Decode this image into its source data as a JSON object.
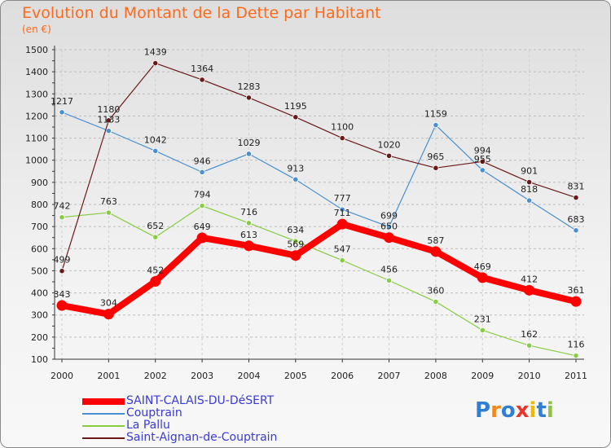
{
  "title": "Evolution du Montant de la Dette par Habitant",
  "subtitle": "(en €)",
  "logo_text": "Proxiti",
  "chart_data": {
    "type": "line",
    "title": "Evolution du Montant de la Dette par Habitant",
    "subtitle": "(en €)",
    "x": [
      "2000",
      "2001",
      "2002",
      "2003",
      "2004",
      "2005",
      "2006",
      "2007",
      "2008",
      "2009",
      "2010",
      "2011"
    ],
    "ylim": [
      100,
      1500
    ],
    "yticks": [
      100,
      200,
      300,
      400,
      500,
      600,
      700,
      800,
      900,
      1000,
      1100,
      1200,
      1300,
      1400,
      1500
    ],
    "grid": "horizontal dashed",
    "legend_position": "bottom",
    "series": [
      {
        "name": "SAINT-CALAIS-DU-DéSERT",
        "color": "#ff0000",
        "emphasis": true,
        "values": [
          343,
          304,
          452,
          649,
          613,
          569,
          711,
          650,
          587,
          469,
          412,
          361
        ]
      },
      {
        "name": "Couptrain",
        "color": "#4a90d0",
        "emphasis": false,
        "values": [
          1217,
          1133,
          1042,
          946,
          1029,
          913,
          777,
          699,
          1159,
          955,
          818,
          683
        ]
      },
      {
        "name": "La Pallu",
        "color": "#88cc44",
        "emphasis": false,
        "values": [
          742,
          763,
          652,
          794,
          716,
          634,
          547,
          456,
          360,
          231,
          162,
          116
        ]
      },
      {
        "name": "Saint-Aignan-de-Couptrain",
        "color": "#6b1a1a",
        "emphasis": false,
        "values": [
          499,
          1180,
          1439,
          1364,
          1283,
          1195,
          1100,
          1020,
          965,
          994,
          901,
          831
        ]
      }
    ]
  }
}
